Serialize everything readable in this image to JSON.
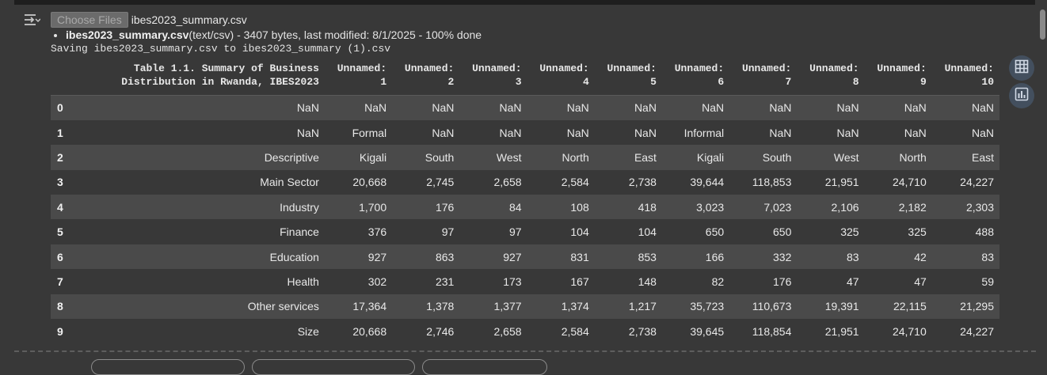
{
  "output": {
    "choose_button_label": "Choose Files",
    "chosen_file": "ibes2023_summary.csv",
    "file_item": {
      "name": "ibes2023_summary.csv",
      "details": "(text/csv) - 3407 bytes, last modified: 8/1/2025 - 100% done"
    },
    "saving_message": "Saving ibes2023_summary.csv to ibes2023_summary (1).csv"
  },
  "table": {
    "columns": [
      [
        "Table 1.1. Summary of Business",
        "Distribution in Rwanda, IBES2023"
      ],
      [
        "Unnamed:",
        "1"
      ],
      [
        "Unnamed:",
        "2"
      ],
      [
        "Unnamed:",
        "3"
      ],
      [
        "Unnamed:",
        "4"
      ],
      [
        "Unnamed:",
        "5"
      ],
      [
        "Unnamed:",
        "6"
      ],
      [
        "Unnamed:",
        "7"
      ],
      [
        "Unnamed:",
        "8"
      ],
      [
        "Unnamed:",
        "9"
      ],
      [
        "Unnamed:",
        "10"
      ]
    ],
    "rows": [
      {
        "index": "0",
        "cells": [
          "NaN",
          "NaN",
          "NaN",
          "NaN",
          "NaN",
          "NaN",
          "NaN",
          "NaN",
          "NaN",
          "NaN",
          "NaN"
        ]
      },
      {
        "index": "1",
        "cells": [
          "NaN",
          "Formal",
          "NaN",
          "NaN",
          "NaN",
          "NaN",
          "Informal",
          "NaN",
          "NaN",
          "NaN",
          "NaN"
        ]
      },
      {
        "index": "2",
        "cells": [
          "Descriptive",
          "Kigali",
          "South",
          "West",
          "North",
          "East",
          "Kigali",
          "South",
          "West",
          "North",
          "East"
        ]
      },
      {
        "index": "3",
        "cells": [
          "Main Sector",
          "20,668",
          "2,745",
          "2,658",
          "2,584",
          "2,738",
          "39,644",
          "118,853",
          "21,951",
          "24,710",
          "24,227"
        ]
      },
      {
        "index": "4",
        "cells": [
          "Industry",
          "1,700",
          "176",
          "84",
          "108",
          "418",
          "3,023",
          "7,023",
          "2,106",
          "2,182",
          "2,303"
        ]
      },
      {
        "index": "5",
        "cells": [
          "Finance",
          "376",
          "97",
          "97",
          "104",
          "104",
          "650",
          "650",
          "325",
          "325",
          "488"
        ]
      },
      {
        "index": "6",
        "cells": [
          "Education",
          "927",
          "863",
          "927",
          "831",
          "853",
          "166",
          "332",
          "83",
          "42",
          "83"
        ]
      },
      {
        "index": "7",
        "cells": [
          "Health",
          "302",
          "231",
          "173",
          "167",
          "148",
          "82",
          "176",
          "47",
          "47",
          "59"
        ]
      },
      {
        "index": "8",
        "cells": [
          "Other services",
          "17,364",
          "1,378",
          "1,377",
          "1,374",
          "1,217",
          "35,723",
          "110,673",
          "19,391",
          "22,115",
          "21,295"
        ]
      },
      {
        "index": "9",
        "cells": [
          "Size",
          "20,668",
          "2,746",
          "2,658",
          "2,584",
          "2,738",
          "39,645",
          "118,854",
          "21,951",
          "24,710",
          "24,227"
        ]
      }
    ]
  },
  "icons": {
    "output_toggle": "output-collapse-icon",
    "table_view": "table-grid-icon",
    "chart_suggest": "bar-chart-icon"
  }
}
